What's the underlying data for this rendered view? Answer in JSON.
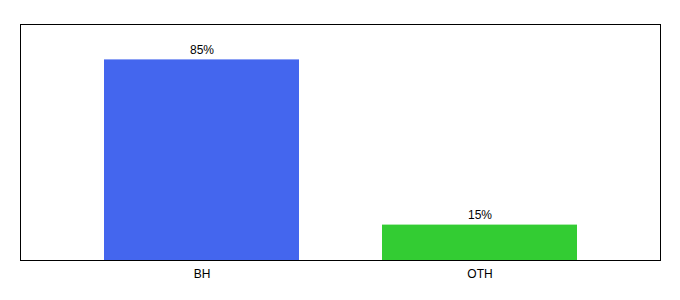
{
  "chart_data": {
    "type": "bar",
    "categories": [
      "BH",
      "OTH"
    ],
    "values": [
      85,
      15
    ],
    "value_labels": [
      "85%",
      "15%"
    ],
    "colors": [
      "#4466ee",
      "#33cc33"
    ],
    "ylim": [
      0,
      100
    ],
    "data_labels": true,
    "tick_labels": "x",
    "grid": false
  }
}
